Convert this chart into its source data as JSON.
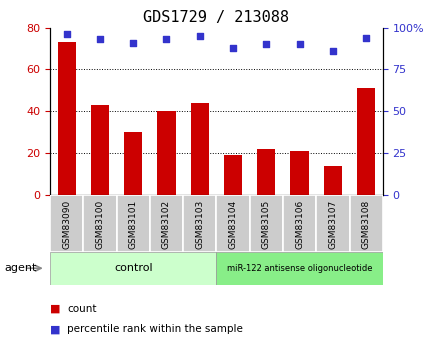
{
  "title": "GDS1729 / 213088",
  "categories": [
    "GSM83090",
    "GSM83100",
    "GSM83101",
    "GSM83102",
    "GSM83103",
    "GSM83104",
    "GSM83105",
    "GSM83106",
    "GSM83107",
    "GSM83108"
  ],
  "count_values": [
    73,
    43,
    30,
    40,
    44,
    19,
    22,
    21,
    14,
    51
  ],
  "percentile_values": [
    96,
    93,
    91,
    93,
    95,
    88,
    90,
    90,
    86,
    94
  ],
  "bar_color": "#cc0000",
  "dot_color": "#3333cc",
  "left_ylim": [
    0,
    80
  ],
  "right_ylim": [
    0,
    100
  ],
  "left_yticks": [
    0,
    20,
    40,
    60,
    80
  ],
  "right_yticks": [
    0,
    25,
    50,
    75,
    100
  ],
  "right_yticklabels": [
    "0",
    "25",
    "50",
    "75",
    "100%"
  ],
  "grid_values": [
    20,
    40,
    60
  ],
  "control_label": "control",
  "treatment_label": "miR-122 antisense oligonucleotide",
  "agent_label": "agent",
  "control_color": "#ccffcc",
  "treatment_color": "#88ee88",
  "tick_label_bg": "#cccccc",
  "legend_count": "count",
  "legend_percentile": "percentile rank within the sample",
  "title_fontsize": 11,
  "tick_fontsize": 6.5,
  "axis_fontsize": 8,
  "legend_fontsize": 7.5
}
